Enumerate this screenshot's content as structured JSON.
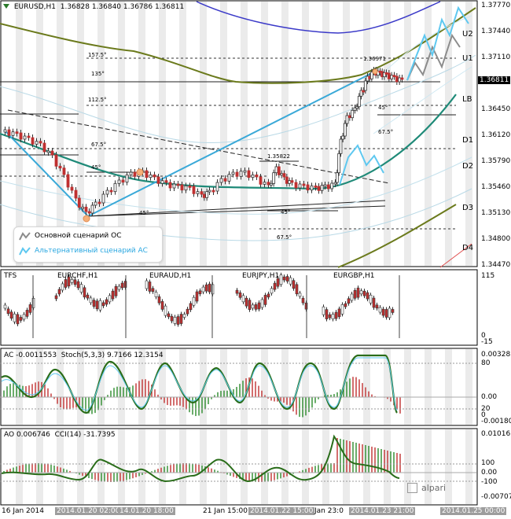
{
  "main_chart": {
    "symbol_header": "EURUSD,H1",
    "ohlc": "1.36828 1.36840 1.36786 1.36811",
    "current_price": "1.36811",
    "price_scale": [
      "1.37770",
      "1.37440",
      "1.37110",
      "1.36450",
      "1.36120",
      "1.35790",
      "1.35460",
      "1.35130",
      "1.34800",
      "1.34470"
    ],
    "levels": {
      "u2": "U2",
      "u1": "U1",
      "lb": "LB",
      "d1": "D1",
      "d2": "D2",
      "d3": "D3",
      "d4": "D4"
    },
    "annotations": {
      "a_157": "157.5°",
      "a_135_top": "135°",
      "a_1125": "112.5°",
      "a_675_left": "67.5°",
      "a_45_left": "45°",
      "a_45_bottom": "45°",
      "a_45_mid": "45°",
      "a_675_bottom": "67.5°",
      "a_45_right": "45°",
      "a_675_right": "67.5°",
      "price_1_35822": "1.35822",
      "price_1_36971": "1.36971"
    },
    "legend": {
      "base": "Основной сценарий ОС",
      "alt": "Альтернативный сценарий АС"
    },
    "colors": {
      "base": "#8c8c8c",
      "alt": "#5ec8f0",
      "envelope_olive": "#6b7a1c",
      "blue_band": "#3a39c8",
      "teal_ma": "#1f8a78",
      "channel": "#3aa9d8"
    }
  },
  "tfs_panel": {
    "title": "TFS",
    "pairs": [
      "EURCHF,H1",
      "EURAUD,H1",
      "EURJPY,H1",
      "EURGBP,H1"
    ],
    "scale": [
      "115",
      "0",
      "-15"
    ]
  },
  "ac_panel": {
    "title": "AC -0.0011553",
    "stoch": "Stoch(5,3,3) 9.7166 12.3154",
    "scale": [
      "0.003283",
      "80",
      "0.00",
      "20",
      "0",
      "-0.001802"
    ]
  },
  "ao_panel": {
    "title": "AO 0.006746",
    "cci": "CCI(14) -31.7395",
    "scale": [
      "0.010161",
      "100",
      "0.00",
      "-100",
      "-0.007074"
    ]
  },
  "time_axis": {
    "labels": [
      {
        "text": "16 Jan 2014",
        "hl": false
      },
      {
        "text": "2014.01.20 02:00",
        "hl": true
      },
      {
        "text": "14.01.20 18:00",
        "hl": true
      },
      {
        "text": "21 Jan 15:00",
        "hl": false
      },
      {
        "text": "2014.01.22 15:00",
        "hl": true
      },
      {
        "text": "Jan 23:0",
        "hl": false
      },
      {
        "text": "2014.01.23 21:00",
        "hl": true
      },
      {
        "text": "2014.01.25 00:00",
        "hl": true
      }
    ]
  },
  "brand": "alpari"
}
